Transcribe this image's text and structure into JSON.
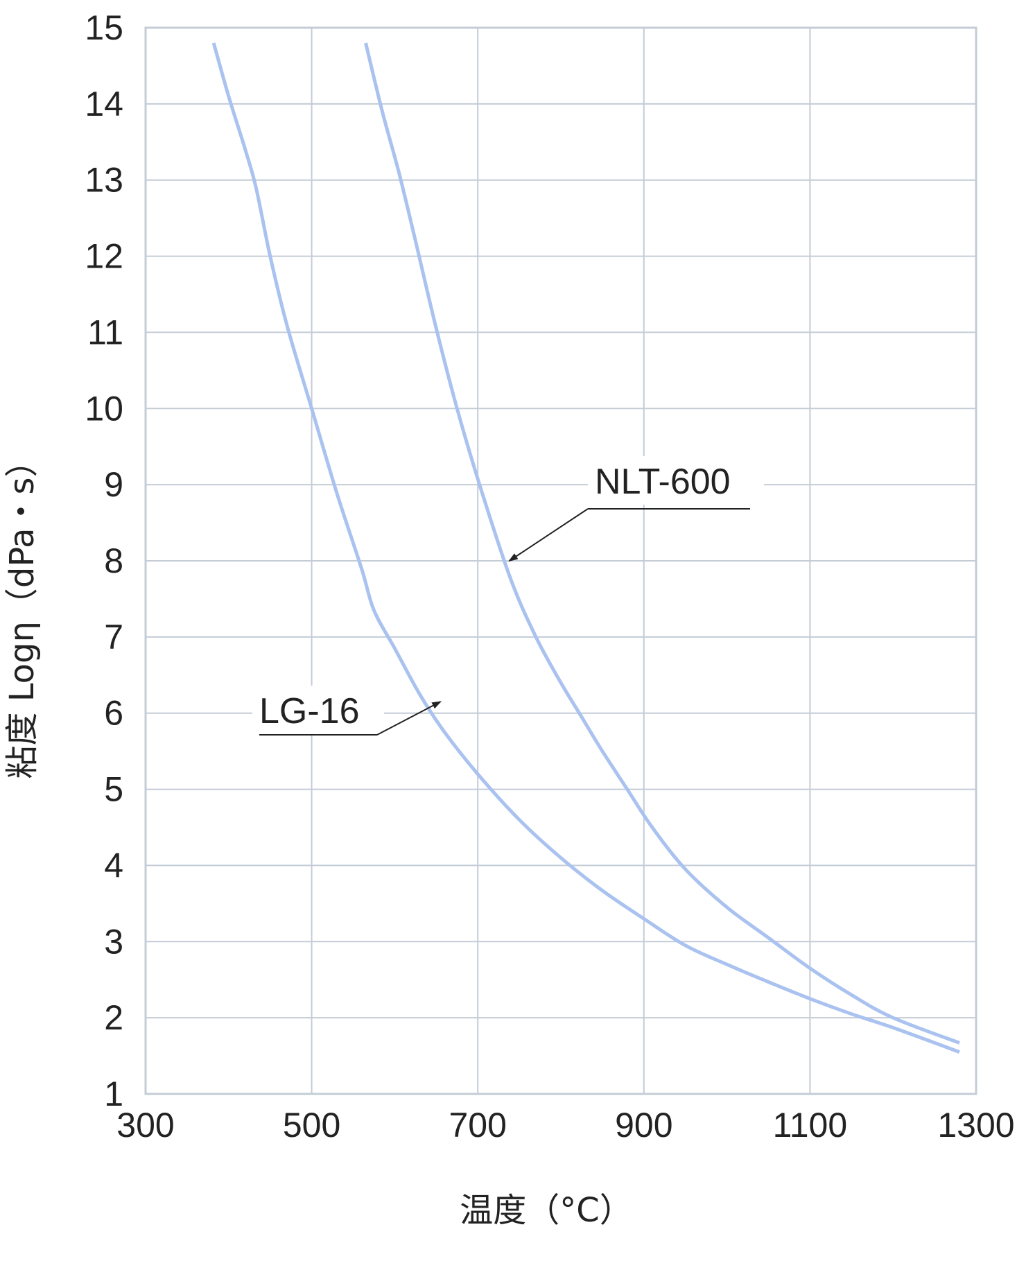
{
  "chart_data": {
    "type": "line",
    "xlabel": "温度（°C）",
    "ylabel": "粘度 Logη（dPa・s）",
    "xlim": [
      300,
      1300
    ],
    "ylim": [
      1,
      15
    ],
    "xticks": [
      300,
      500,
      700,
      900,
      1100,
      1300
    ],
    "yticks": [
      1,
      2,
      3,
      4,
      5,
      6,
      7,
      8,
      9,
      10,
      11,
      12,
      13,
      14,
      15
    ],
    "grid": true,
    "line_color": "#aac2ef",
    "series": [
      {
        "name": "LG-16",
        "x": [
          382,
          400,
          420,
          433,
          450,
          470,
          500,
          530,
          560,
          575,
          600,
          630,
          660,
          700,
          750,
          800,
          850,
          900,
          950,
          1000,
          1050,
          1100,
          1150,
          1200,
          1280
        ],
        "y": [
          14.8,
          14.1,
          13.4,
          12.9,
          12.0,
          11.1,
          10.0,
          8.9,
          7.9,
          7.35,
          6.85,
          6.25,
          5.75,
          5.2,
          4.6,
          4.1,
          3.67,
          3.3,
          2.95,
          2.7,
          2.47,
          2.25,
          2.05,
          1.87,
          1.55
        ]
      },
      {
        "name": "NLT-600",
        "x": [
          565,
          585,
          605,
          625,
          650,
          675,
          705,
          740,
          770,
          800,
          825,
          850,
          880,
          910,
          950,
          1000,
          1050,
          1100,
          1150,
          1200,
          1280
        ],
        "y": [
          14.8,
          13.9,
          13.1,
          12.2,
          11.05,
          10.0,
          8.9,
          7.75,
          7.0,
          6.4,
          5.95,
          5.5,
          5.0,
          4.5,
          3.95,
          3.45,
          3.05,
          2.65,
          2.3,
          2.0,
          1.67
        ]
      }
    ],
    "annotations": [
      {
        "text": "NLT-600",
        "target": [
          738,
          8.0
        ]
      },
      {
        "text": "LG-16",
        "target": [
          655,
          6.15
        ]
      }
    ]
  }
}
